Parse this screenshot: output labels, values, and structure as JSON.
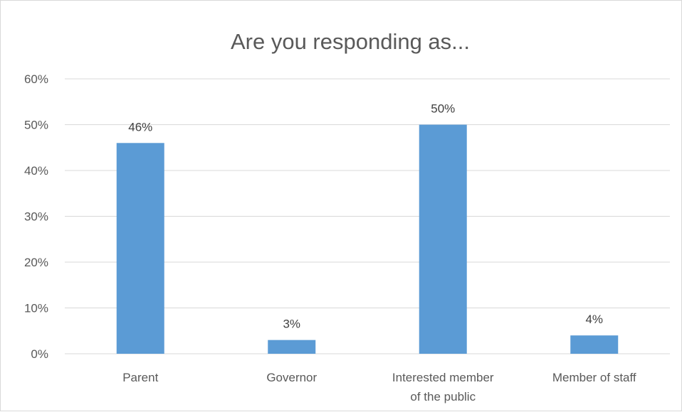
{
  "chart_data": {
    "type": "bar",
    "title": "Are you responding as...",
    "xlabel": "",
    "ylabel": "",
    "categories": [
      [
        "Parent"
      ],
      [
        "Governor"
      ],
      [
        "Interested member",
        "of the public"
      ],
      [
        "Member of staff"
      ]
    ],
    "values": [
      46,
      3,
      50,
      4
    ],
    "data_labels": [
      "46%",
      "3%",
      "50%",
      "4%"
    ],
    "ylim": [
      0,
      60
    ],
    "yticks": [
      0,
      10,
      20,
      30,
      40,
      50,
      60
    ],
    "ytick_labels": [
      "0%",
      "10%",
      "20%",
      "30%",
      "40%",
      "50%",
      "60%"
    ],
    "grid": true,
    "legend": "none",
    "bar_color": "#5B9BD5"
  }
}
